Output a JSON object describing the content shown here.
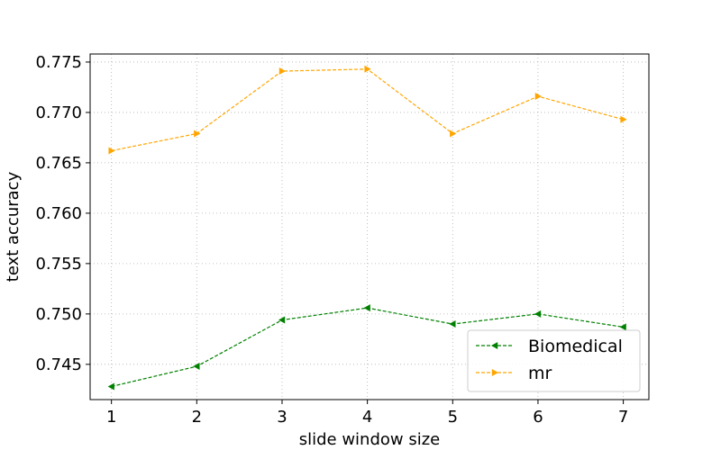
{
  "chart_data": {
    "type": "line",
    "title": "",
    "xlabel": "slide window size",
    "ylabel": "text accuracy",
    "x": [
      1,
      2,
      3,
      4,
      5,
      6,
      7
    ],
    "x_ticks": [
      "1",
      "2",
      "3",
      "4",
      "5",
      "6",
      "7"
    ],
    "y_ticks": [
      "0.745",
      "0.750",
      "0.755",
      "0.760",
      "0.765",
      "0.770",
      "0.775"
    ],
    "xlim": [
      0.75,
      7.3
    ],
    "ylim": [
      0.7415,
      0.7758
    ],
    "grid": true,
    "legend_position": "lower-right",
    "series": [
      {
        "name": "Biomedical",
        "color": "#008000",
        "marker": "triangle-left",
        "linestyle": "dashed",
        "values": [
          0.7428,
          0.7448,
          0.7494,
          0.7506,
          0.749,
          0.75,
          0.7487
        ]
      },
      {
        "name": "mr",
        "color": "#FFA500",
        "marker": "triangle-right",
        "linestyle": "dashed",
        "values": [
          0.7662,
          0.7679,
          0.7741,
          0.7743,
          0.7679,
          0.7716,
          0.7693
        ]
      }
    ]
  }
}
